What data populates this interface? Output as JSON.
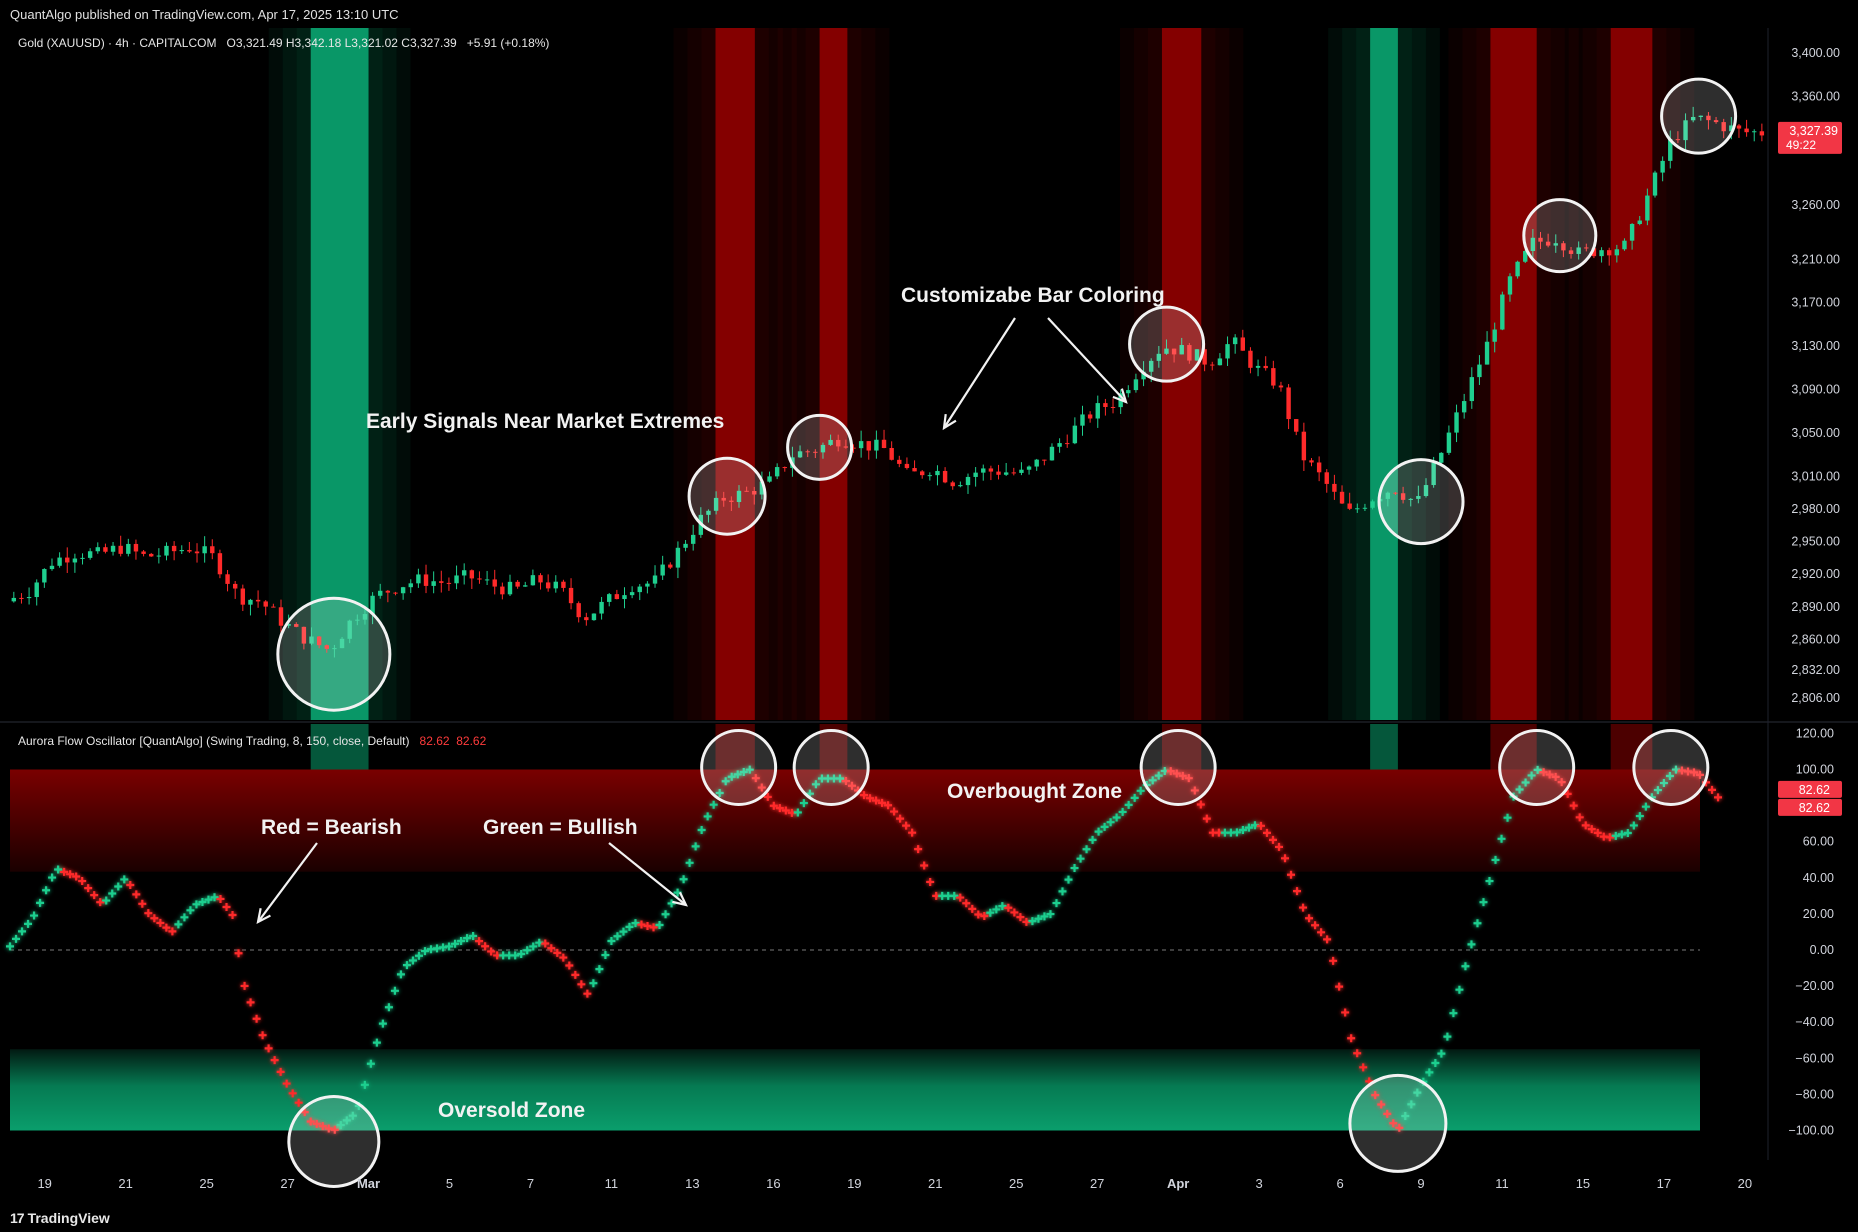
{
  "header": {
    "published": "QuantAlgo published on TradingView.com, Apr 17, 2025 13:10 UTC"
  },
  "main_legend": {
    "symbol": "Gold (XAUUSD) · 4h · CAPITALCOM",
    "ohlc": "O3,321.49  H3,342.18  L3,321.02  C3,327.39",
    "change": "+5.91 (+0.18%)"
  },
  "osc_legend": {
    "name": "Aurora Flow Oscillator [QuantAlgo] (Swing Trading, 8, 150, close, Default)",
    "v1": "82.62",
    "v2": "82.62"
  },
  "footer": {
    "brand": "TradingView",
    "mark": "17"
  },
  "colors": {
    "bull": "#1fcf8f",
    "bear": "#ff2a2a",
    "zone_green": "#0a9e6c",
    "zone_red": "#8a0000"
  },
  "chart_data": [
    {
      "type": "candlestick",
      "title": "Gold (XAUUSD) · 4h · CAPITALCOM",
      "y_ticks": [
        3400,
        3360,
        3260,
        3210,
        3170,
        3130,
        3090,
        3050,
        3010,
        2980,
        2950,
        2920,
        2890,
        2860,
        2832,
        2806
      ],
      "y_tick_labels": [
        "3,400.00",
        "3,360.00",
        "3,260.00",
        "3,210.00",
        "3,170.00",
        "3,130.00",
        "3,090.00",
        "3,050.00",
        "3,010.00",
        "2,980.00",
        "2,950.00",
        "2,920.00",
        "2,890.00",
        "2,860.00",
        "2,832.00",
        "2,806.00"
      ],
      "last_price": "3,327.39",
      "countdown": "49:22",
      "price_path": [
        {
          "day": 0,
          "price": 2895
        },
        {
          "day": 1,
          "price": 2905
        },
        {
          "day": 2,
          "price": 2932
        },
        {
          "day": 3,
          "price": 2940
        },
        {
          "day": 4,
          "price": 2938
        },
        {
          "day": 5,
          "price": 2945
        },
        {
          "day": 6,
          "price": 2936
        },
        {
          "day": 7,
          "price": 2940
        },
        {
          "day": 8,
          "price": 2945
        },
        {
          "day": 9,
          "price": 2935
        },
        {
          "day": 10,
          "price": 2900
        },
        {
          "day": 11,
          "price": 2895
        },
        {
          "day": 12,
          "price": 2875
        },
        {
          "day": 13,
          "price": 2860
        },
        {
          "day": 14,
          "price": 2850
        },
        {
          "day": 15,
          "price": 2880
        },
        {
          "day": 16,
          "price": 2900
        },
        {
          "day": 17,
          "price": 2910
        },
        {
          "day": 18,
          "price": 2915
        },
        {
          "day": 19,
          "price": 2912
        },
        {
          "day": 20,
          "price": 2918
        },
        {
          "day": 21,
          "price": 2910
        },
        {
          "day": 22,
          "price": 2905
        },
        {
          "day": 23,
          "price": 2915
        },
        {
          "day": 24,
          "price": 2905
        },
        {
          "day": 25,
          "price": 2880
        },
        {
          "day": 26,
          "price": 2895
        },
        {
          "day": 27,
          "price": 2910
        },
        {
          "day": 28,
          "price": 2912
        },
        {
          "day": 29,
          "price": 2940
        },
        {
          "day": 30,
          "price": 2970
        },
        {
          "day": 31,
          "price": 2990
        },
        {
          "day": 32,
          "price": 2995
        },
        {
          "day": 33,
          "price": 3005
        },
        {
          "day": 34,
          "price": 3030
        },
        {
          "day": 35,
          "price": 3035
        },
        {
          "day": 36,
          "price": 3045
        },
        {
          "day": 37,
          "price": 3040
        },
        {
          "day": 38,
          "price": 3035
        },
        {
          "day": 39,
          "price": 3010
        },
        {
          "day": 40,
          "price": 3018
        },
        {
          "day": 41,
          "price": 3005
        },
        {
          "day": 42,
          "price": 3015
        },
        {
          "day": 43,
          "price": 3015
        },
        {
          "day": 44,
          "price": 3012
        },
        {
          "day": 45,
          "price": 3030
        },
        {
          "day": 46,
          "price": 3050
        },
        {
          "day": 47,
          "price": 3070
        },
        {
          "day": 48,
          "price": 3080
        },
        {
          "day": 49,
          "price": 3110
        },
        {
          "day": 50,
          "price": 3130
        },
        {
          "day": 51,
          "price": 3125
        },
        {
          "day": 52,
          "price": 3115
        },
        {
          "day": 53,
          "price": 3135
        },
        {
          "day": 54,
          "price": 3110
        },
        {
          "day": 55,
          "price": 3095
        },
        {
          "day": 56,
          "price": 3030
        },
        {
          "day": 57,
          "price": 3005
        },
        {
          "day": 58,
          "price": 2975
        },
        {
          "day": 59,
          "price": 2990
        },
        {
          "day": 60,
          "price": 3000
        },
        {
          "day": 61,
          "price": 2985
        },
        {
          "day": 62,
          "price": 3030
        },
        {
          "day": 63,
          "price": 3080
        },
        {
          "day": 64,
          "price": 3130
        },
        {
          "day": 65,
          "price": 3190
        },
        {
          "day": 66,
          "price": 3225
        },
        {
          "day": 67,
          "price": 3230
        },
        {
          "day": 68,
          "price": 3215
        },
        {
          "day": 69,
          "price": 3220
        },
        {
          "day": 70,
          "price": 3222
        },
        {
          "day": 71,
          "price": 3270
        },
        {
          "day": 72,
          "price": 3320
        },
        {
          "day": 73,
          "price": 3340
        },
        {
          "day": 74,
          "price": 3335
        },
        {
          "day": 75,
          "price": 3327
        }
      ],
      "circled_regions_days": [
        14,
        31,
        35,
        50,
        61,
        67,
        73
      ],
      "background_zones": [
        {
          "start_day": 13,
          "end_day": 15.5,
          "kind": "bull"
        },
        {
          "start_day": 30.5,
          "end_day": 32.2,
          "kind": "bear"
        },
        {
          "start_day": 35,
          "end_day": 36.2,
          "kind": "bear"
        },
        {
          "start_day": 49.8,
          "end_day": 51.5,
          "kind": "bear"
        },
        {
          "start_day": 58.8,
          "end_day": 60,
          "kind": "bull"
        },
        {
          "start_day": 64,
          "end_day": 66,
          "kind": "bear"
        },
        {
          "start_day": 69.2,
          "end_day": 71,
          "kind": "bear"
        }
      ],
      "annotations": [
        {
          "text": "Customizabe Bar Coloring"
        },
        {
          "text": "Early Signals Near Market Extremes"
        }
      ]
    },
    {
      "type": "scatter",
      "title": "Aurora Flow Oscillator [QuantAlgo] (Swing Trading, 8, 150, close, Default)",
      "y_ticks": [
        120,
        100,
        60,
        40,
        20,
        0,
        -20,
        -40,
        -60,
        -80,
        -100
      ],
      "y_tick_labels": [
        "120.00",
        "100.00",
        "60.00",
        "40.00",
        "20.00",
        "0.00",
        "−20.00",
        "−40.00",
        "−60.00",
        "−80.00",
        "−100.00"
      ],
      "last_values": [
        "82.62",
        "82.62"
      ],
      "ylim": [
        -120,
        120
      ],
      "overbought": [
        60,
        100
      ],
      "oversold": [
        -100,
        -55
      ],
      "osc_path": [
        {
          "day": 0,
          "value": 2
        },
        {
          "day": 1,
          "value": 18
        },
        {
          "day": 2,
          "value": 45
        },
        {
          "day": 3,
          "value": 40
        },
        {
          "day": 4,
          "value": 25
        },
        {
          "day": 5,
          "value": 40
        },
        {
          "day": 6,
          "value": 20
        },
        {
          "day": 7,
          "value": 10
        },
        {
          "day": 8,
          "value": 25
        },
        {
          "day": 9,
          "value": 30
        },
        {
          "day": 9.7,
          "value": 18
        },
        {
          "day": 10,
          "value": -15
        },
        {
          "day": 11,
          "value": -50
        },
        {
          "day": 12,
          "value": -75
        },
        {
          "day": 13,
          "value": -95
        },
        {
          "day": 14,
          "value": -100
        },
        {
          "day": 15,
          "value": -90
        },
        {
          "day": 16,
          "value": -45
        },
        {
          "day": 17,
          "value": -10
        },
        {
          "day": 18,
          "value": 0
        },
        {
          "day": 19,
          "value": 2
        },
        {
          "day": 20,
          "value": 8
        },
        {
          "day": 21,
          "value": -3
        },
        {
          "day": 22,
          "value": -3
        },
        {
          "day": 23,
          "value": 5
        },
        {
          "day": 24,
          "value": -5
        },
        {
          "day": 25,
          "value": -25
        },
        {
          "day": 26,
          "value": 5
        },
        {
          "day": 27,
          "value": 15
        },
        {
          "day": 28,
          "value": 12
        },
        {
          "day": 29,
          "value": 35
        },
        {
          "day": 30,
          "value": 70
        },
        {
          "day": 31,
          "value": 95
        },
        {
          "day": 32,
          "value": 100
        },
        {
          "day": 33,
          "value": 80
        },
        {
          "day": 34,
          "value": 75
        },
        {
          "day": 35,
          "value": 95
        },
        {
          "day": 36,
          "value": 95
        },
        {
          "day": 37,
          "value": 85
        },
        {
          "day": 38,
          "value": 80
        },
        {
          "day": 39,
          "value": 65
        },
        {
          "day": 40,
          "value": 30
        },
        {
          "day": 41,
          "value": 30
        },
        {
          "day": 42,
          "value": 18
        },
        {
          "day": 43,
          "value": 25
        },
        {
          "day": 44,
          "value": 15
        },
        {
          "day": 45,
          "value": 20
        },
        {
          "day": 46,
          "value": 45
        },
        {
          "day": 47,
          "value": 65
        },
        {
          "day": 48,
          "value": 75
        },
        {
          "day": 49,
          "value": 90
        },
        {
          "day": 50,
          "value": 100
        },
        {
          "day": 51,
          "value": 95
        },
        {
          "day": 52,
          "value": 65
        },
        {
          "day": 53,
          "value": 65
        },
        {
          "day": 54,
          "value": 70
        },
        {
          "day": 55,
          "value": 55
        },
        {
          "day": 56,
          "value": 20
        },
        {
          "day": 57,
          "value": 5
        },
        {
          "day": 58,
          "value": -50
        },
        {
          "day": 59,
          "value": -80
        },
        {
          "day": 60,
          "value": -100
        },
        {
          "day": 61,
          "value": -75
        },
        {
          "day": 62,
          "value": -55
        },
        {
          "day": 63,
          "value": -5
        },
        {
          "day": 64,
          "value": 40
        },
        {
          "day": 65,
          "value": 85
        },
        {
          "day": 66,
          "value": 100
        },
        {
          "day": 67,
          "value": 95
        },
        {
          "day": 68,
          "value": 70
        },
        {
          "day": 69,
          "value": 62
        },
        {
          "day": 70,
          "value": 65
        },
        {
          "day": 71,
          "value": 85
        },
        {
          "day": 72,
          "value": 100
        },
        {
          "day": 73,
          "value": 98
        },
        {
          "day": 74,
          "value": 82
        }
      ],
      "circled_regions": [
        {
          "day": 14,
          "value": -95
        },
        {
          "day": 31.5,
          "value": 100
        },
        {
          "day": 35.5,
          "value": 100
        },
        {
          "day": 50.5,
          "value": 100
        },
        {
          "day": 60,
          "value": -85
        },
        {
          "day": 66,
          "value": 100
        },
        {
          "day": 71.8,
          "value": 100
        }
      ],
      "annotations": [
        {
          "text": "Overbought Zone"
        },
        {
          "text": "Oversold Zone"
        },
        {
          "text": "Red = Bearish"
        },
        {
          "text": "Green = Bullish"
        }
      ]
    }
  ],
  "x_axis": {
    "ticks": [
      {
        "day": 1.5,
        "label": "19"
      },
      {
        "day": 5,
        "label": "21"
      },
      {
        "day": 8.5,
        "label": "25"
      },
      {
        "day": 12,
        "label": "27"
      },
      {
        "day": 15.5,
        "label": "Mar"
      },
      {
        "day": 19,
        "label": "5"
      },
      {
        "day": 22.5,
        "label": "7"
      },
      {
        "day": 26,
        "label": "11"
      },
      {
        "day": 29.5,
        "label": "13"
      },
      {
        "day": 33,
        "label": "16"
      },
      {
        "day": 36.5,
        "label": "19"
      },
      {
        "day": 40,
        "label": "21"
      },
      {
        "day": 43.5,
        "label": "25"
      },
      {
        "day": 47,
        "label": "27"
      },
      {
        "day": 50.5,
        "label": "Apr"
      },
      {
        "day": 54,
        "label": "3"
      },
      {
        "day": 57.5,
        "label": "6"
      },
      {
        "day": 61,
        "label": "9"
      },
      {
        "day": 64.5,
        "label": "11"
      },
      {
        "day": 68,
        "label": "15"
      },
      {
        "day": 71.5,
        "label": "17"
      },
      {
        "day": 75,
        "label": "20"
      }
    ]
  }
}
